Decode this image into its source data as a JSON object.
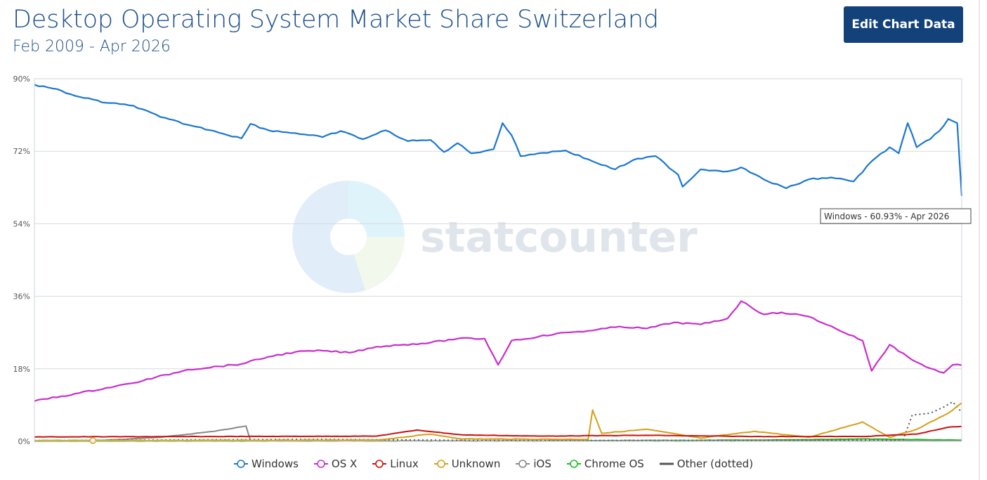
{
  "header": {
    "title": "Desktop Operating System Market Share Switzerland",
    "subtitle": "Feb 2009 - Apr 2026",
    "edit_button_label": "Edit Chart Data"
  },
  "watermark": {
    "text": "statcounter"
  },
  "tooltip": {
    "text": "Windows - 60.93% - Apr 2026"
  },
  "chart_data": {
    "type": "line",
    "x_range": [
      "2009-02",
      "2026-04"
    ],
    "ylim": [
      0,
      90
    ],
    "y_ticks": [
      "0%",
      "18%",
      "36%",
      "54%",
      "72%",
      "90%"
    ],
    "grid": true,
    "legend_position": "bottom",
    "series": [
      {
        "name": "Windows",
        "color": "#1a76d2",
        "dotted": false,
        "points": [
          [
            "2009-02",
            88.5
          ],
          [
            "2009-06",
            87.6
          ],
          [
            "2009-12",
            85.5
          ],
          [
            "2010-06",
            84.0
          ],
          [
            "2010-12",
            83.3
          ],
          [
            "2011-06",
            80.5
          ],
          [
            "2011-12",
            78.6
          ],
          [
            "2012-06",
            77.0
          ],
          [
            "2012-12",
            75.2
          ],
          [
            "2013-02",
            78.8
          ],
          [
            "2013-06",
            77.2
          ],
          [
            "2013-12",
            76.5
          ],
          [
            "2014-06",
            75.5
          ],
          [
            "2014-10",
            77.0
          ],
          [
            "2015-03",
            75.0
          ],
          [
            "2015-08",
            77.2
          ],
          [
            "2016-01",
            74.5
          ],
          [
            "2016-06",
            74.8
          ],
          [
            "2016-09",
            71.8
          ],
          [
            "2016-12",
            74.0
          ],
          [
            "2017-03",
            71.5
          ],
          [
            "2017-08",
            72.5
          ],
          [
            "2017-10",
            79.0
          ],
          [
            "2017-12",
            76.0
          ],
          [
            "2018-02",
            70.8
          ],
          [
            "2018-06",
            71.5
          ],
          [
            "2018-12",
            72.2
          ],
          [
            "2019-06",
            69.5
          ],
          [
            "2019-11",
            67.5
          ],
          [
            "2020-03",
            69.8
          ],
          [
            "2020-08",
            70.8
          ],
          [
            "2021-01",
            66.2
          ],
          [
            "2021-02",
            63.2
          ],
          [
            "2021-06",
            67.5
          ],
          [
            "2021-12",
            67.0
          ],
          [
            "2022-03",
            68.0
          ],
          [
            "2022-08",
            65.0
          ],
          [
            "2023-01",
            62.8
          ],
          [
            "2023-06",
            65.0
          ],
          [
            "2023-11",
            65.5
          ],
          [
            "2024-04",
            64.5
          ],
          [
            "2024-08",
            69.5
          ],
          [
            "2024-12",
            73.0
          ],
          [
            "2025-02",
            71.5
          ],
          [
            "2025-04",
            79.0
          ],
          [
            "2025-06",
            73.0
          ],
          [
            "2025-09",
            75.0
          ],
          [
            "2025-11",
            77.0
          ],
          [
            "2026-01",
            80.0
          ],
          [
            "2026-03",
            79.0
          ],
          [
            "2026-04",
            60.93
          ]
        ]
      },
      {
        "name": "OS X",
        "color": "#c92ecb",
        "dotted": false,
        "points": [
          [
            "2009-02",
            10.0
          ],
          [
            "2009-12",
            12.0
          ],
          [
            "2010-12",
            14.5
          ],
          [
            "2011-12",
            17.8
          ],
          [
            "2012-12",
            19.2
          ],
          [
            "2013-06",
            21.0
          ],
          [
            "2013-12",
            22.2
          ],
          [
            "2014-06",
            22.5
          ],
          [
            "2014-12",
            22.0
          ],
          [
            "2015-06",
            23.5
          ],
          [
            "2015-12",
            24.0
          ],
          [
            "2016-06",
            24.5
          ],
          [
            "2016-12",
            25.5
          ],
          [
            "2017-06",
            25.5
          ],
          [
            "2017-09",
            19.0
          ],
          [
            "2017-12",
            25.0
          ],
          [
            "2018-06",
            26.0
          ],
          [
            "2018-12",
            27.0
          ],
          [
            "2019-06",
            27.5
          ],
          [
            "2019-12",
            28.5
          ],
          [
            "2020-06",
            28.0
          ],
          [
            "2020-12",
            29.5
          ],
          [
            "2021-06",
            29.0
          ],
          [
            "2021-12",
            30.5
          ],
          [
            "2022-03",
            34.8
          ],
          [
            "2022-08",
            31.5
          ],
          [
            "2022-12",
            32.0
          ],
          [
            "2023-06",
            31.0
          ],
          [
            "2023-12",
            28.0
          ],
          [
            "2024-06",
            25.0
          ],
          [
            "2024-08",
            17.5
          ],
          [
            "2024-12",
            24.0
          ],
          [
            "2025-04",
            21.0
          ],
          [
            "2025-08",
            18.5
          ],
          [
            "2025-12",
            17.0
          ],
          [
            "2026-02",
            19.0
          ],
          [
            "2026-04",
            18.9
          ]
        ]
      },
      {
        "name": "Linux",
        "color": "#cc1111",
        "dotted": false,
        "points": [
          [
            "2009-02",
            1.1
          ],
          [
            "2012-06",
            1.2
          ],
          [
            "2015-06",
            1.3
          ],
          [
            "2016-03",
            2.8
          ],
          [
            "2017-01",
            1.6
          ],
          [
            "2018-06",
            1.3
          ],
          [
            "2020-06",
            1.5
          ],
          [
            "2022-06",
            1.2
          ],
          [
            "2024-06",
            1.2
          ],
          [
            "2025-06",
            1.8
          ],
          [
            "2026-01",
            3.5
          ],
          [
            "2026-04",
            3.7
          ]
        ]
      },
      {
        "name": "Unknown",
        "color": "#d4a017",
        "dotted": false,
        "points": [
          [
            "2009-02",
            0.2
          ],
          [
            "2015-06",
            0.3
          ],
          [
            "2016-06",
            1.8
          ],
          [
            "2017-01",
            0.6
          ],
          [
            "2019-05",
            0.5
          ],
          [
            "2019-06",
            7.8
          ],
          [
            "2019-08",
            2.0
          ],
          [
            "2020-06",
            3.0
          ],
          [
            "2021-06",
            0.8
          ],
          [
            "2022-06",
            2.5
          ],
          [
            "2023-06",
            1.0
          ],
          [
            "2024-06",
            4.8
          ],
          [
            "2024-12",
            1.0
          ],
          [
            "2025-06",
            3.0
          ],
          [
            "2026-01",
            7.0
          ],
          [
            "2026-04",
            9.5
          ]
        ]
      },
      {
        "name": "iOS",
        "color": "#888888",
        "dotted": false,
        "points": [
          [
            "2009-02",
            0.0
          ],
          [
            "2010-06",
            0.3
          ],
          [
            "2011-06",
            1.0
          ],
          [
            "2012-06",
            2.5
          ],
          [
            "2013-01",
            3.8
          ],
          [
            "2013-02",
            0.1
          ],
          [
            "2026-04",
            0.1
          ]
        ]
      },
      {
        "name": "Chrome OS",
        "color": "#22bb22",
        "dotted": false,
        "points": [
          [
            "2009-02",
            0.0
          ],
          [
            "2018-06",
            0.1
          ],
          [
            "2022-06",
            0.3
          ],
          [
            "2024-06",
            0.6
          ],
          [
            "2026-04",
            0.3
          ]
        ]
      },
      {
        "name": "Other (dotted)",
        "color": "#555555",
        "dotted": true,
        "points": [
          [
            "2009-02",
            0.2
          ],
          [
            "2014-06",
            0.5
          ],
          [
            "2017-06",
            0.2
          ],
          [
            "2024-12",
            0.3
          ],
          [
            "2025-03",
            0.4
          ],
          [
            "2025-05",
            6.5
          ],
          [
            "2025-09",
            7.0
          ],
          [
            "2025-12",
            8.5
          ],
          [
            "2026-02",
            9.8
          ],
          [
            "2026-04",
            7.2
          ]
        ]
      }
    ]
  }
}
